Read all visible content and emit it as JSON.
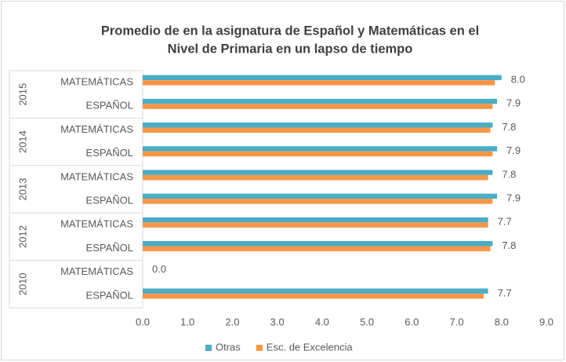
{
  "chart_data": {
    "type": "bar",
    "orientation": "horizontal",
    "title": [
      "Promedio de en la asignatura de Español y Matemáticas en el",
      "Nivel de Primaria en un lapso de tiempo"
    ],
    "category_groups": [
      "2015",
      "2014",
      "2013",
      "2012",
      "2010"
    ],
    "categories": [
      "MATEMÁTICAS",
      "ESPAÑOL",
      "MATEMÁTICAS",
      "ESPAÑOL",
      "MATEMÁTICAS",
      "ESPAÑOL",
      "MATEMÁTICAS",
      "ESPAÑOL",
      "MATEMÁTICAS",
      "ESPAÑOL"
    ],
    "series": [
      {
        "name": "Otras",
        "color": "#4bacc6",
        "values": [
          8.0,
          7.9,
          7.8,
          7.9,
          7.8,
          7.9,
          7.7,
          7.8,
          0.0,
          7.7
        ],
        "value_labels": [
          "8.0",
          "7.9",
          "7.8",
          "7.9",
          "7.8",
          "7.9",
          "7.7",
          "7.8",
          "0.0",
          "7.7"
        ]
      },
      {
        "name": "Esc. de Excelencia",
        "color": "#f79646",
        "values": [
          7.85,
          7.8,
          7.75,
          7.8,
          7.7,
          7.8,
          7.7,
          7.75,
          0.0,
          7.6
        ]
      }
    ],
    "xlim": [
      0,
      9
    ],
    "xticks": [
      {
        "value": 0,
        "label": "0.0"
      },
      {
        "value": 1,
        "label": "1.0"
      },
      {
        "value": 2,
        "label": "2.0"
      },
      {
        "value": 3,
        "label": "3.0"
      },
      {
        "value": 4,
        "label": "4.0"
      },
      {
        "value": 5,
        "label": "5.0"
      },
      {
        "value": 6,
        "label": "6.0"
      },
      {
        "value": 7,
        "label": "7.0"
      },
      {
        "value": 8,
        "label": "8.0"
      },
      {
        "value": 9,
        "label": "9.0"
      }
    ],
    "legend": "bottom"
  }
}
